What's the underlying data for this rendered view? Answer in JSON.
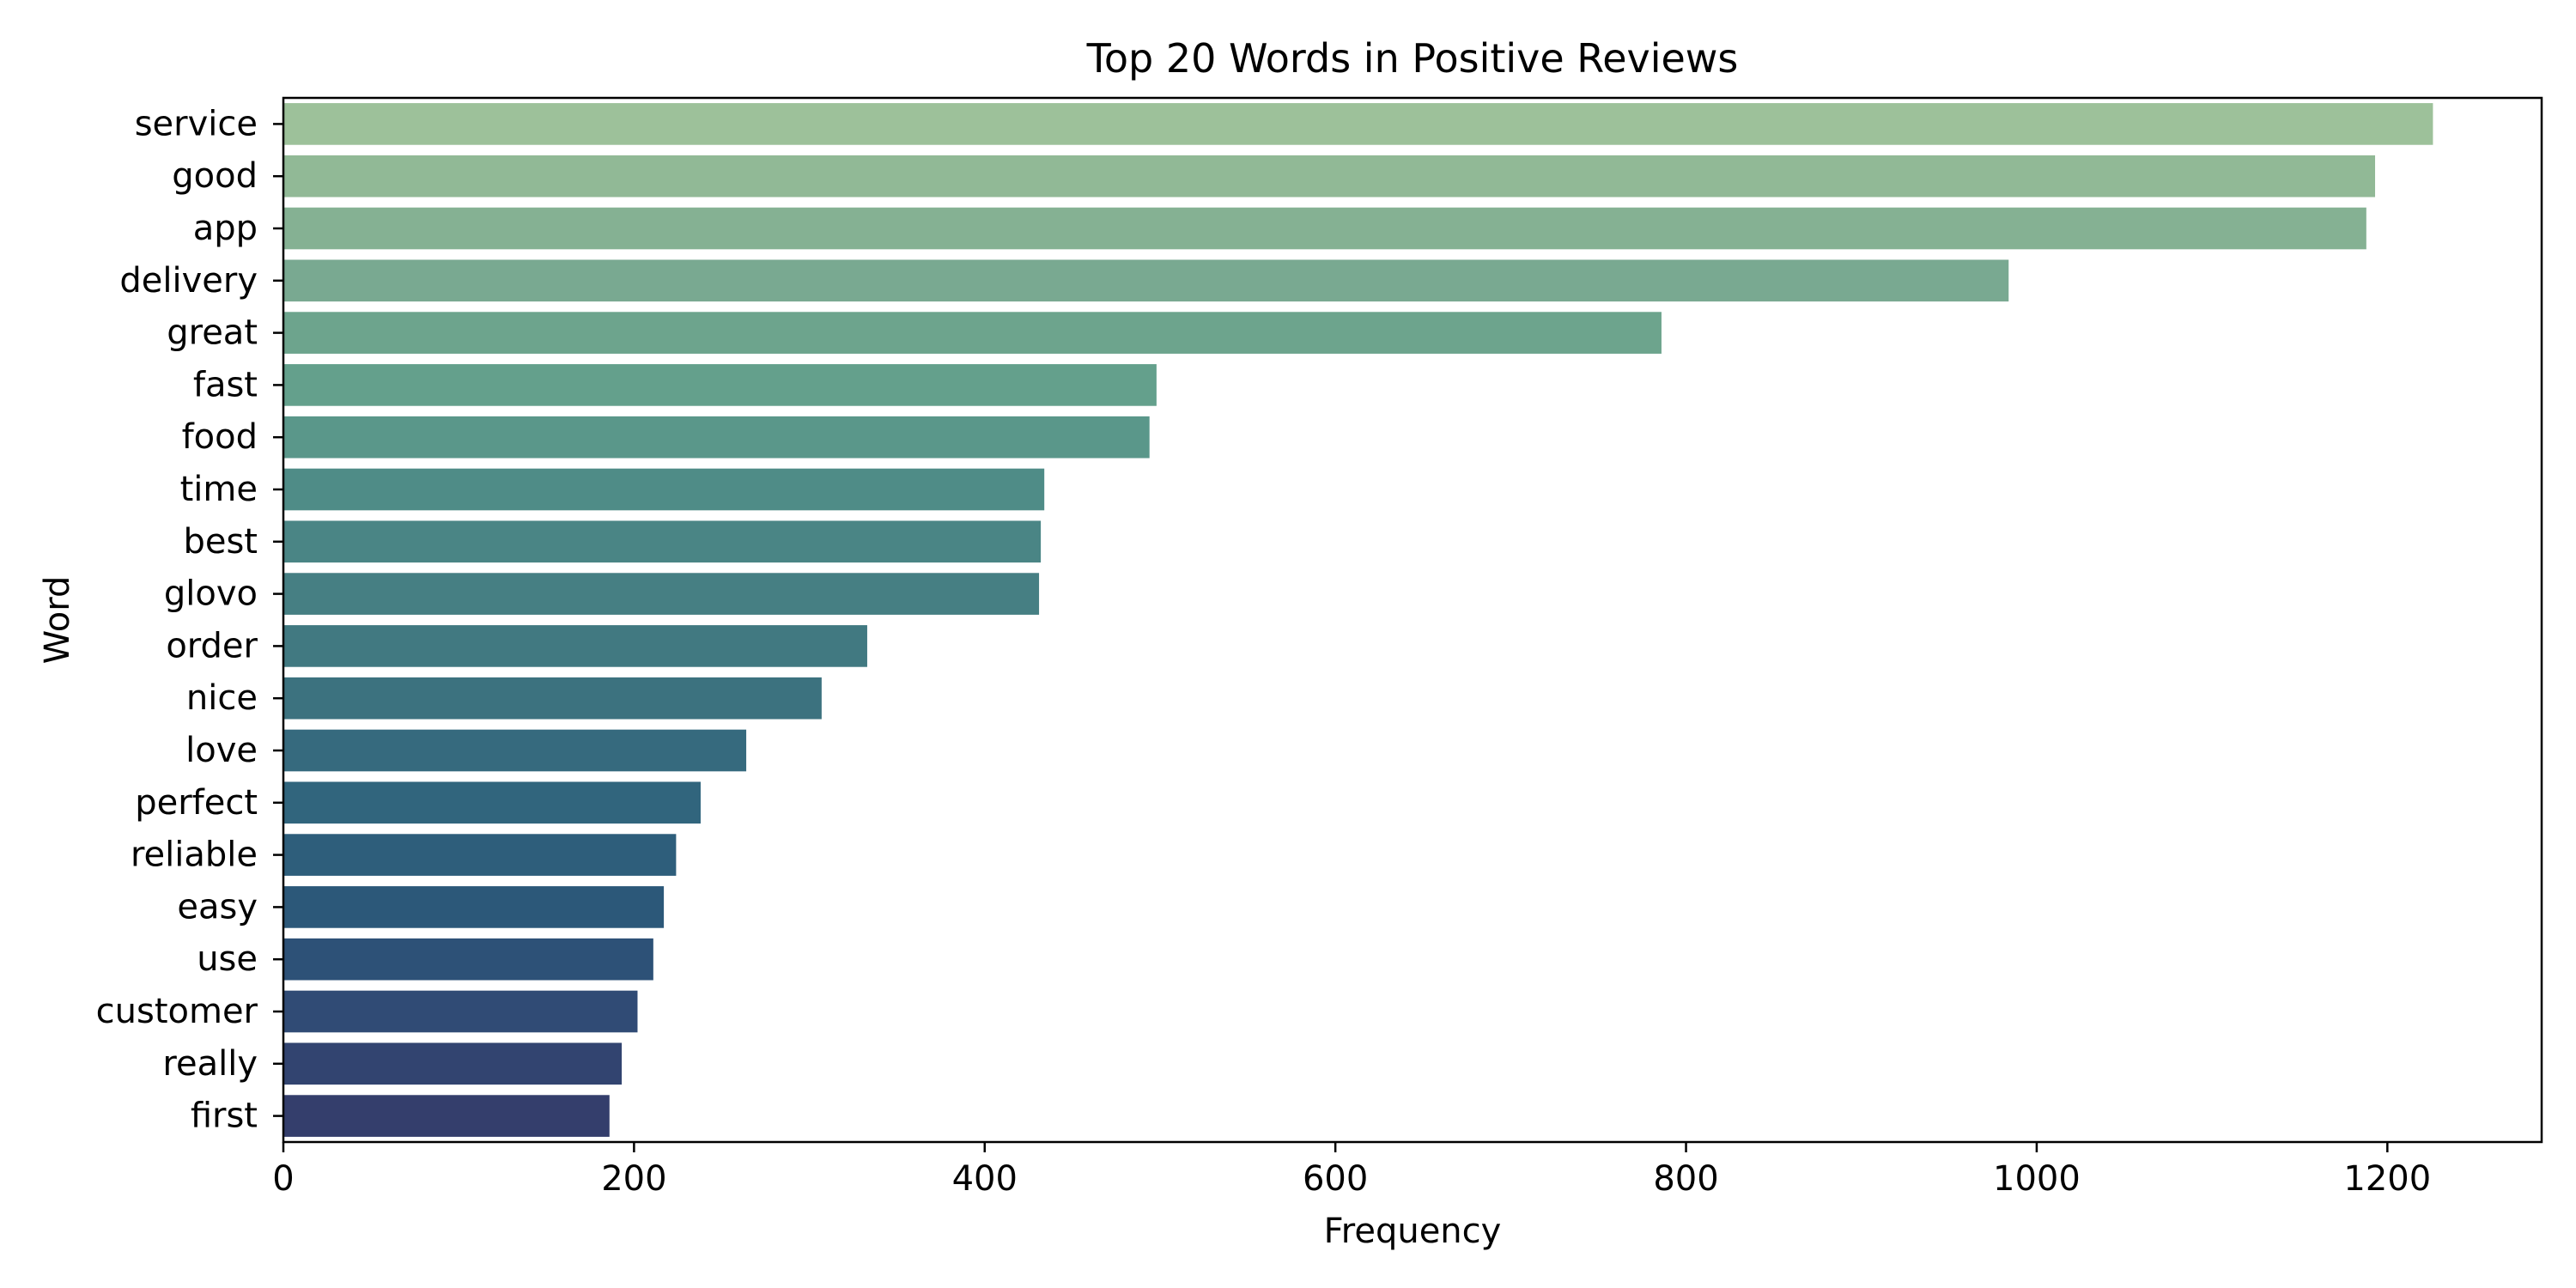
{
  "chart_data": {
    "type": "bar",
    "orientation": "horizontal",
    "title": "Top 20 Words in Positive Reviews",
    "xlabel": "Frequency",
    "ylabel": "Word",
    "xlim": [
      0,
      1288
    ],
    "xticks": [
      0,
      200,
      400,
      600,
      800,
      1000,
      1200
    ],
    "grid": false,
    "legend": "none",
    "categories": [
      "service",
      "good",
      "app",
      "delivery",
      "great",
      "fast",
      "food",
      "time",
      "best",
      "glovo",
      "order",
      "nice",
      "love",
      "perfect",
      "reliable",
      "easy",
      "use",
      "customer",
      "really",
      "first"
    ],
    "values": [
      1226,
      1193,
      1188,
      984,
      786,
      498,
      494,
      434,
      432,
      431,
      333,
      307,
      264,
      238,
      224,
      217,
      211,
      202,
      193,
      186
    ],
    "colors": [
      "#9dc19a",
      "#91b996",
      "#85b193",
      "#79a991",
      "#6da48d",
      "#64a08c",
      "#5a978a",
      "#4f8c87",
      "#4a8585",
      "#467f83",
      "#417981",
      "#3c727f",
      "#366a7e",
      "#31657d",
      "#2e5e7b",
      "#2c5879",
      "#2d5177",
      "#304b75",
      "#324470",
      "#343e6c"
    ]
  }
}
